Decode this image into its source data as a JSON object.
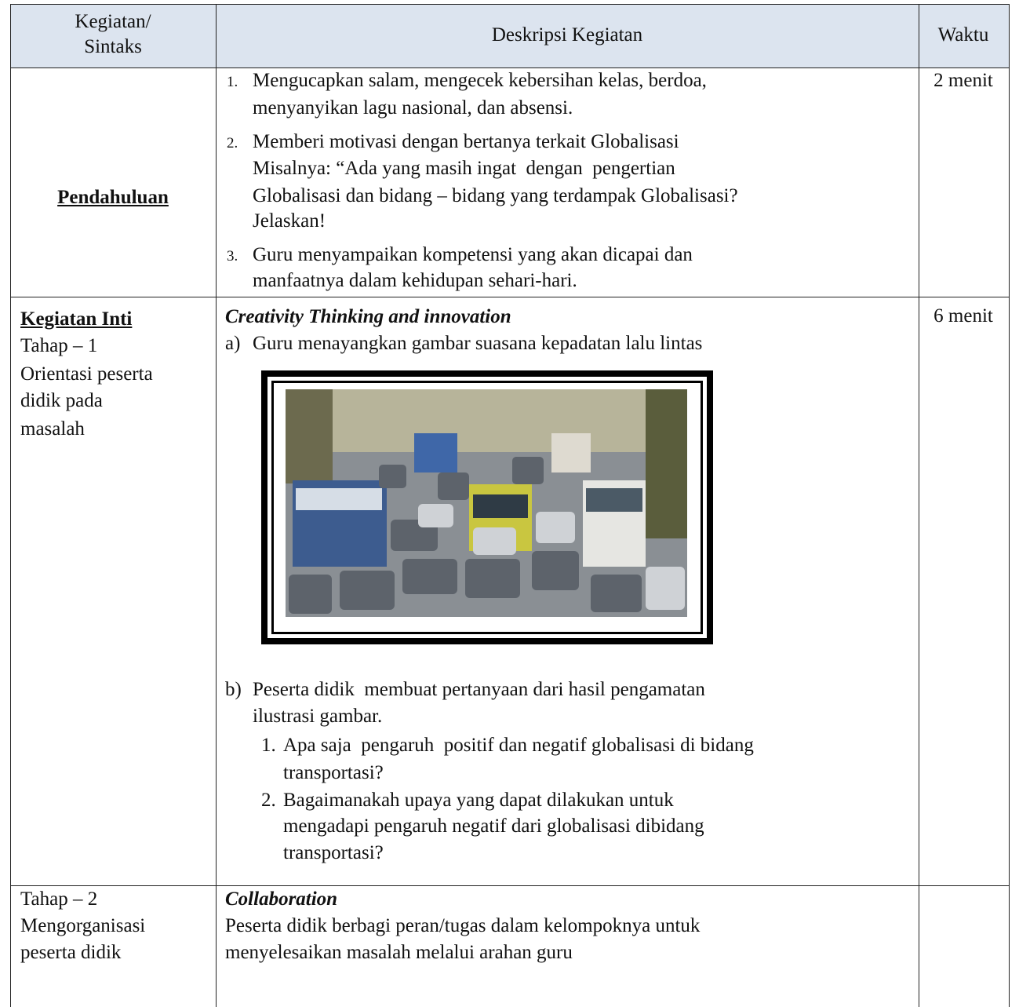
{
  "table": {
    "header": {
      "activity": [
        "Kegiatan/",
        "Sintaks"
      ],
      "description": "Deskripsi Kegiatan",
      "time": "Waktu"
    },
    "rows": [
      {
        "activity": {
          "title": "Pendahuluan"
        },
        "description": {
          "items": [
            {
              "number": "1.",
              "lines": [
                "Mengucapkan salam, mengecek kebersihan kelas, berdoa,",
                "menyanyikan lagu nasional, dan absensi."
              ]
            },
            {
              "number": "2.",
              "lines": [
                "Memberi motivasi dengan bertanya terkait Globalisasi",
                "Misalnya: “Ada yang masih ingat  dengan  pengertian",
                "Globalisasi dan bidang – bidang yang terdampak Globalisasi?",
                "Jelaskan!"
              ]
            },
            {
              "number": "3.",
              "lines": [
                "Guru menyampaikan kompetensi yang akan dicapai dan",
                "manfaatnya dalam kehidupan sehari-hari."
              ]
            }
          ]
        },
        "time": "2 menit"
      },
      {
        "activity": {
          "title": "Kegiatan Inti",
          "lines": [
            "Tahap – 1",
            "Orientasi peserta",
            "didik pada",
            "masalah"
          ]
        },
        "description": {
          "heading": "Creativity Thinking and innovation",
          "items": [
            {
              "number": "a)",
              "lines": [
                "Guru menayangkan gambar suasana kepadatan lalu lintas"
              ]
            },
            {
              "number": "b)",
              "lines": [
                "Peserta didik  membuat pertanyaan dari hasil pengamatan",
                "ilustrasi gambar."
              ],
              "subitems": [
                {
                  "number": "1.",
                  "lines": [
                    "Apa saja  pengaruh  positif dan negatif globalisasi di bidang",
                    "transportasi?"
                  ]
                },
                {
                  "number": "2.",
                  "lines": [
                    "Bagaimanakah upaya yang dapat dilakukan untuk",
                    "mengadapi pengaruh negatif dari globalisasi dibidang",
                    "transportasi?"
                  ]
                }
              ]
            }
          ]
        },
        "time": "6 menit"
      },
      {
        "activity": {
          "lines": [
            "Tahap – 2",
            "Mengorganisasi",
            "peserta didik"
          ]
        },
        "description": {
          "heading": "Collaboration",
          "lines": [
            "Peserta didik berbagi peran/tugas dalam kelompoknya untuk",
            "menyelesaikan masalah melalui arahan guru"
          ]
        },
        "time": ""
      }
    ]
  }
}
